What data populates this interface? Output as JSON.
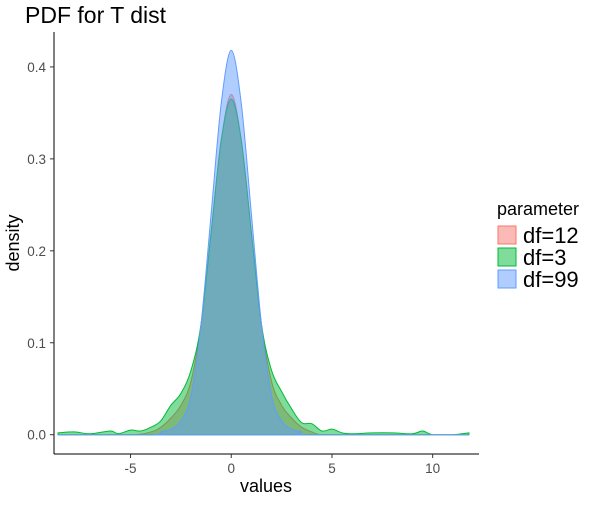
{
  "chart_data": {
    "type": "area",
    "title": "PDF for T dist",
    "xlabel": "values",
    "ylabel": "density",
    "xlim": [
      -8.8,
      12.3
    ],
    "ylim": [
      -0.021,
      0.438
    ],
    "x_ticks": [
      -5,
      0,
      5,
      10
    ],
    "y_ticks": [
      0.0,
      0.1,
      0.2,
      0.3,
      0.4
    ],
    "y_tick_labels": [
      "0.0",
      "0.1",
      "0.2",
      "0.3",
      "0.4"
    ],
    "grid": false,
    "legend": {
      "title": "parameter",
      "position": "right"
    },
    "series": [
      {
        "name": "df=12",
        "color": "#F8766D",
        "x": [
          -8.6,
          -5.0,
          -4.0,
          -3.5,
          -3.0,
          -2.5,
          -2.0,
          -1.5,
          -1.0,
          -0.5,
          0.0,
          0.5,
          1.0,
          1.5,
          2.0,
          2.5,
          3.0,
          3.5,
          4.0,
          4.5,
          6.0,
          11.8
        ],
        "values": [
          0.0,
          0.0,
          0.003,
          0.008,
          0.018,
          0.032,
          0.058,
          0.12,
          0.22,
          0.32,
          0.37,
          0.32,
          0.22,
          0.12,
          0.058,
          0.032,
          0.018,
          0.008,
          0.003,
          0.0,
          0.0,
          0.0
        ]
      },
      {
        "name": "df=3",
        "color": "#00BA38",
        "x": [
          -8.6,
          -7.8,
          -7.0,
          -6.0,
          -5.6,
          -5.0,
          -4.5,
          -4.0,
          -3.5,
          -3.0,
          -2.5,
          -2.0,
          -1.5,
          -1.0,
          -0.5,
          0.0,
          0.5,
          1.0,
          1.5,
          2.0,
          2.5,
          3.0,
          3.5,
          4.0,
          4.5,
          5.0,
          5.5,
          6.0,
          7.0,
          8.0,
          9.0,
          9.5,
          10.0,
          11.0,
          11.8
        ],
        "values": [
          0.002,
          0.003,
          0.001,
          0.004,
          0.001,
          0.005,
          0.004,
          0.008,
          0.015,
          0.032,
          0.045,
          0.07,
          0.12,
          0.22,
          0.32,
          0.365,
          0.32,
          0.22,
          0.12,
          0.07,
          0.047,
          0.028,
          0.013,
          0.012,
          0.004,
          0.006,
          0.002,
          0.001,
          0.002,
          0.002,
          0.001,
          0.004,
          0.0,
          0.0,
          0.002
        ]
      },
      {
        "name": "df=99",
        "color": "#619CFF",
        "x": [
          -8.6,
          -4.0,
          -3.5,
          -3.0,
          -2.5,
          -2.0,
          -1.5,
          -1.0,
          -0.5,
          0.0,
          0.5,
          1.0,
          1.5,
          2.0,
          2.5,
          3.0,
          3.5,
          4.0,
          11.8
        ],
        "values": [
          0.0,
          0.0,
          0.003,
          0.006,
          0.015,
          0.042,
          0.12,
          0.24,
          0.36,
          0.418,
          0.36,
          0.24,
          0.12,
          0.042,
          0.015,
          0.006,
          0.003,
          0.0,
          0.0
        ]
      }
    ]
  }
}
